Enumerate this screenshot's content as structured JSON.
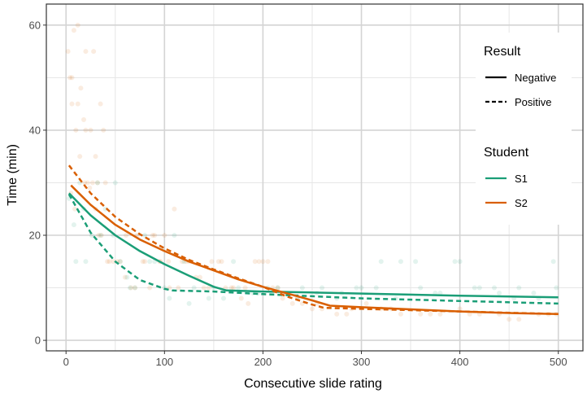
{
  "chart_data": {
    "type": "line",
    "title": "",
    "xlabel": "Consecutive slide rating",
    "ylabel": "Time (min)",
    "xlim": [
      -20,
      525
    ],
    "ylim": [
      -2,
      64
    ],
    "xticks": [
      0,
      100,
      200,
      300,
      400,
      500
    ],
    "yticks": [
      0,
      20,
      40,
      60
    ],
    "xtick_labels": [
      "0",
      "100",
      "200",
      "300",
      "400",
      "500"
    ],
    "ytick_labels": [
      "0",
      "20",
      "40",
      "60"
    ],
    "grid": true,
    "legend_position": "top-right",
    "legend": {
      "result_title": "Result",
      "result_items": [
        {
          "label": "Negative",
          "linestyle": "solid"
        },
        {
          "label": "Positive",
          "linestyle": "dashed"
        }
      ],
      "student_title": "Student",
      "student_items": [
        {
          "label": "S1",
          "color": "#1b9e77"
        },
        {
          "label": "S2",
          "color": "#d95f02"
        }
      ]
    },
    "series": [
      {
        "student": "S1",
        "result": "Negative",
        "color": "#1b9e77",
        "linestyle": "solid",
        "x": [
          3,
          25,
          50,
          75,
          100,
          125,
          150,
          163,
          200,
          300,
          400,
          500
        ],
        "y": [
          28.0,
          23.8,
          20.0,
          17.0,
          14.5,
          12.3,
          10.2,
          9.5,
          9.3,
          8.9,
          8.5,
          8.2
        ]
      },
      {
        "student": "S1",
        "result": "Positive",
        "color": "#1b9e77",
        "linestyle": "dashed",
        "x": [
          3,
          25,
          50,
          75,
          100,
          108,
          150,
          200,
          300,
          400,
          500
        ],
        "y": [
          27.8,
          20.5,
          15.0,
          11.5,
          9.8,
          9.5,
          9.3,
          8.8,
          8.0,
          7.5,
          7.0
        ]
      },
      {
        "student": "S2",
        "result": "Negative",
        "color": "#d95f02",
        "linestyle": "solid",
        "x": [
          5,
          25,
          50,
          75,
          100,
          125,
          150,
          175,
          200,
          225,
          250,
          268,
          300,
          350,
          400,
          450,
          500
        ],
        "y": [
          29.5,
          25.8,
          22.0,
          19.2,
          17.0,
          15.0,
          13.3,
          11.6,
          10.2,
          8.9,
          7.6,
          6.6,
          6.3,
          5.9,
          5.5,
          5.2,
          5.0
        ]
      },
      {
        "student": "S2",
        "result": "Positive",
        "color": "#d95f02",
        "linestyle": "dashed",
        "x": [
          3,
          25,
          50,
          75,
          100,
          125,
          150,
          175,
          200,
          225,
          250,
          262,
          300,
          400,
          500
        ],
        "y": [
          33.3,
          28.0,
          23.5,
          20.2,
          17.5,
          15.3,
          13.5,
          11.8,
          10.2,
          8.3,
          6.8,
          6.2,
          6.0,
          5.5,
          5.0
        ]
      }
    ],
    "scatter": [
      {
        "student": "S2",
        "color": "#d95f02",
        "x": [
          2,
          4,
          6,
          8,
          10,
          12,
          15,
          18,
          20,
          22,
          25,
          28,
          30,
          32,
          35,
          38,
          40,
          5,
          9,
          14,
          19,
          24,
          30,
          36,
          42,
          48,
          55,
          60,
          66,
          72,
          80,
          85,
          90,
          95,
          100,
          105,
          110,
          118,
          125,
          132,
          140,
          148,
          155,
          162,
          170,
          178,
          185,
          192,
          200,
          210,
          220,
          230,
          240,
          250,
          260,
          275,
          290,
          305,
          320,
          340,
          360,
          380,
          400,
          420,
          440,
          460,
          480,
          498,
          6,
          12,
          20,
          27,
          33,
          44,
          52,
          61,
          70,
          78,
          88,
          96,
          104,
          114,
          122,
          136,
          145,
          158,
          168,
          182,
          196,
          205,
          215,
          235,
          255,
          285,
          330,
          370,
          410,
          450,
          490
        ],
        "y": [
          55,
          50,
          45,
          59,
          40,
          60,
          48,
          42,
          55,
          30,
          40,
          55,
          35,
          30,
          45,
          40,
          30,
          28,
          25,
          35,
          30,
          29,
          25,
          20,
          15,
          15,
          15,
          12,
          10,
          20,
          15,
          10,
          20,
          15,
          20,
          10,
          25,
          15,
          15,
          12,
          10,
          15,
          15,
          10,
          10,
          8,
          7,
          15,
          15,
          10,
          8,
          7,
          7,
          6,
          6,
          5,
          6,
          7,
          6,
          5,
          5,
          5,
          6,
          5,
          5,
          4,
          5,
          5,
          50,
          45,
          40,
          30,
          20,
          15,
          15,
          20,
          10,
          15,
          20,
          15,
          15,
          10,
          15,
          12,
          10,
          15,
          10,
          10,
          15,
          15,
          10,
          8,
          7,
          5,
          6,
          5,
          5,
          4,
          5
        ]
      },
      {
        "student": "S1",
        "color": "#1b9e77",
        "x": [
          3,
          8,
          14,
          20,
          26,
          32,
          40,
          48,
          55,
          62,
          70,
          80,
          90,
          100,
          110,
          120,
          130,
          145,
          160,
          175,
          190,
          205,
          220,
          240,
          260,
          280,
          300,
          320,
          340,
          360,
          380,
          400,
          420,
          440,
          460,
          480,
          498,
          10,
          18,
          35,
          50,
          65,
          85,
          105,
          125,
          150,
          170,
          195,
          215,
          235,
          255,
          275,
          295,
          315,
          335,
          355,
          375,
          395,
          415,
          435,
          455,
          475,
          495
        ],
        "y": [
          27,
          22,
          30,
          15,
          20,
          30,
          25,
          20,
          15,
          12,
          10,
          20,
          15,
          10,
          20,
          15,
          10,
          8,
          8,
          10,
          9,
          10,
          9,
          10,
          10,
          9,
          10,
          15,
          15,
          10,
          9,
          15,
          10,
          9,
          10,
          8,
          10,
          15,
          25,
          20,
          30,
          10,
          15,
          8,
          7,
          10,
          15,
          9,
          10,
          8,
          9,
          8,
          10,
          10,
          8,
          15,
          9,
          15,
          10,
          10,
          8,
          9,
          15
        ]
      }
    ]
  }
}
